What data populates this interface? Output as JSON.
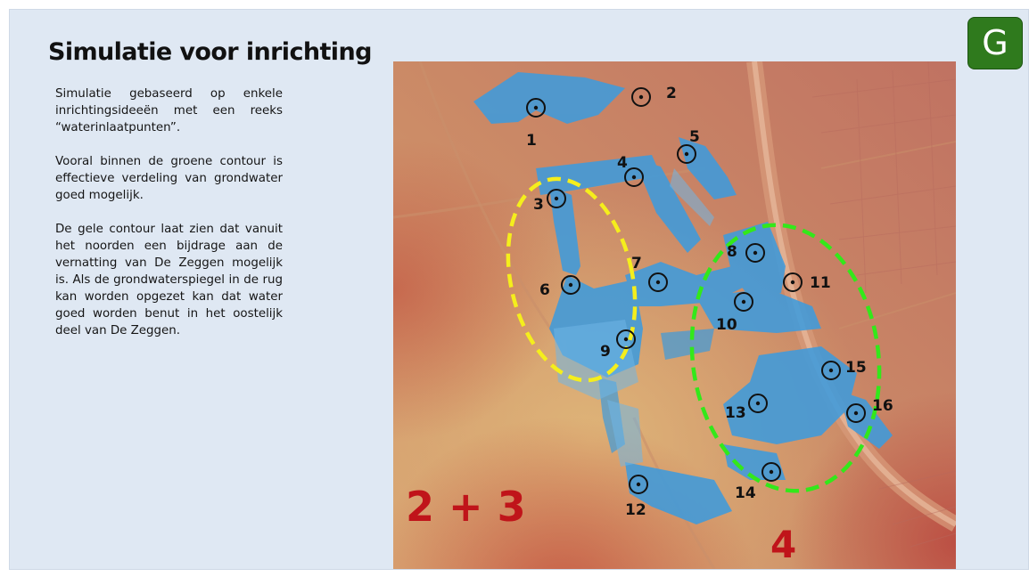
{
  "slide": {
    "title": "Simulatie voor inrichting",
    "paragraphs": [
      "Simulatie gebaseerd op enkele inrichtingsideeën met een reeks “waterinlaatpunten”.",
      "Vooral binnen de groene contour is effectieve verdeling van grondwater goed mogelijk.",
      "De gele contour laat zien dat vanuit het noorden een bijdrage aan de vernatting van De Zeggen mogelijk is. Als de grondwaterspiegel in de rug kan worden opgezet kan dat water goed worden benut in het oostelijk deel van De Zeggen."
    ],
    "logo_letter": "G",
    "logo_color": "#2f7a1d"
  },
  "map": {
    "inlet_points": [
      "1",
      "2",
      "3",
      "4",
      "5",
      "6",
      "7",
      "8",
      "9",
      "10",
      "11",
      "12",
      "13",
      "14",
      "15",
      "16"
    ],
    "scenario_labels": {
      "yellow_area": "2 + 3",
      "green_area": "4"
    },
    "contour_colors": {
      "yellow": "#f5ee1c",
      "green": "#33e81a"
    },
    "water_color": "#3f9bdc",
    "scenario_label_color": "#c0141a"
  }
}
